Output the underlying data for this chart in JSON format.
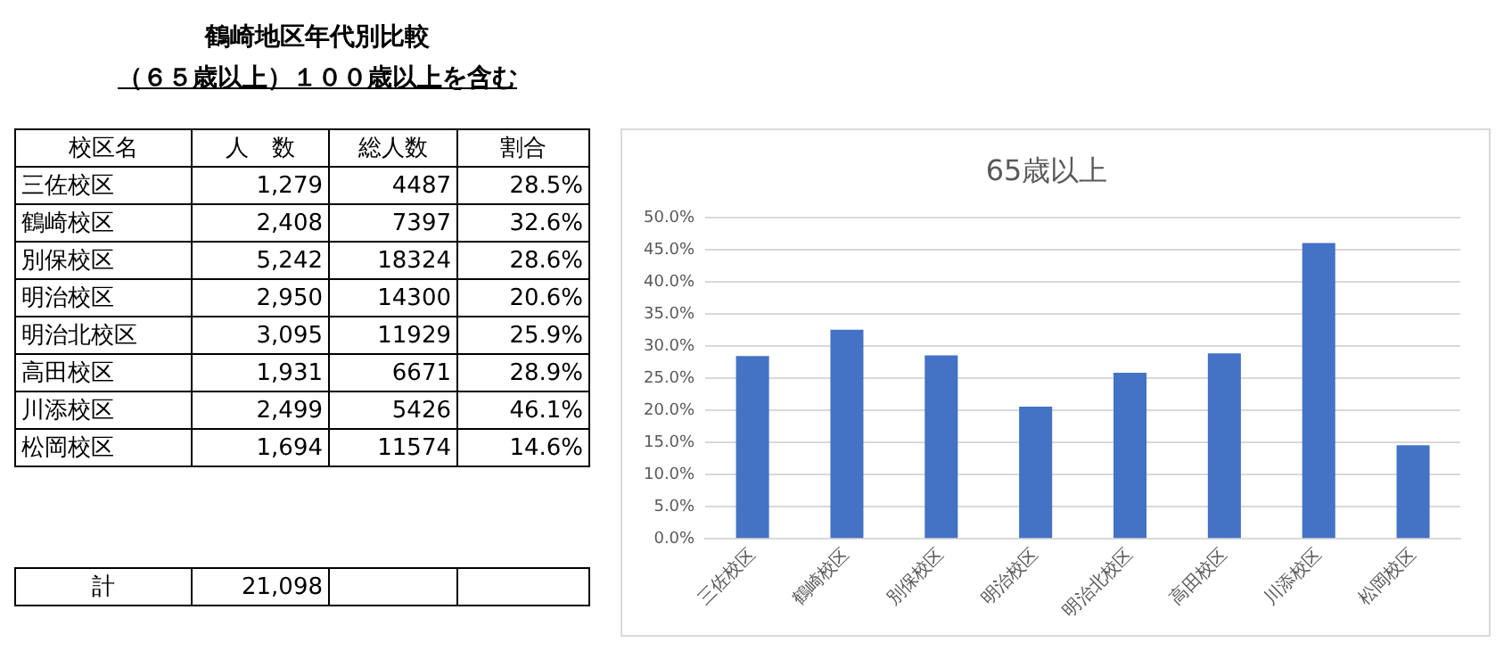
{
  "chart_data": [
    {
      "type": "other",
      "title": "鶴崎地区年代別比較",
      "subtitle": "（６５歳以上）１００歳以上を含む",
      "annotations": [
        "校区名",
        "人　数",
        "総人数",
        "割合",
        "三佐校区",
        "1,279",
        "4487",
        "28.5%",
        "鶴崎校区",
        "2,408",
        "7397",
        "32.6%",
        "別保校区",
        "5,242",
        "18324",
        "28.6%",
        "明治校区",
        "2,950",
        "14300",
        "20.6%",
        "明治北校区",
        "3,095",
        "11929",
        "25.9%",
        "高田校区",
        "1,931",
        "6671",
        "28.9%",
        "川添校区",
        "2,499",
        "5426",
        "46.1%",
        "松岡校区",
        "1,694",
        "11574",
        "14.6%",
        "計",
        "21,098"
      ]
    },
    {
      "type": "bar",
      "title": "65歳以上",
      "categories": [
        "三佐校区",
        "鶴崎校区",
        "別保校区",
        "明治校区",
        "明治北校区",
        "高田校区",
        "川添校区",
        "松岡校区"
      ],
      "values": [
        28.5,
        32.6,
        28.6,
        20.6,
        25.9,
        28.9,
        46.1,
        14.6
      ],
      "color": "#4472c4",
      "ylim": [
        0,
        50
      ],
      "yticks": [
        {
          "value": 0,
          "label": "0.0%"
        },
        {
          "value": 5,
          "label": "5.0%"
        },
        {
          "value": 10,
          "label": "10.0%"
        },
        {
          "value": 15,
          "label": "15.0%"
        },
        {
          "value": 20,
          "label": "20.0%"
        },
        {
          "value": 25,
          "label": "25.0%"
        },
        {
          "value": 30,
          "label": "30.0%"
        },
        {
          "value": 35,
          "label": "35.0%"
        },
        {
          "value": 40,
          "label": "40.0%"
        },
        {
          "value": 45,
          "label": "45.0%"
        },
        {
          "value": 50,
          "label": "50.0%"
        }
      ],
      "grid": "y",
      "legend": false
    }
  ]
}
